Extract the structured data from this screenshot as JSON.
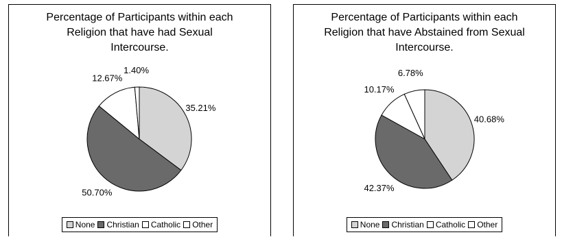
{
  "chart_data": [
    {
      "type": "pie",
      "title": "Percentage of Participants within each Religion that have had Sexual Intercourse.",
      "categories": [
        "None",
        "Christian",
        "Catholic",
        "Other"
      ],
      "values": [
        35.21,
        50.7,
        12.67,
        1.4
      ],
      "data_labels": [
        "35.21%",
        "50.70%",
        "12.67%",
        "1.40%"
      ],
      "colors": [
        "#d4d4d4",
        "#6a6a6a",
        "#ffffff",
        "#ffffff"
      ],
      "legend": "bottom"
    },
    {
      "type": "pie",
      "title": "Percentage of Participants within each Religion that have Abstained from Sexual Intercourse.",
      "categories": [
        "None",
        "Christian",
        "Catholic",
        "Other"
      ],
      "values": [
        40.68,
        42.37,
        10.17,
        6.78
      ],
      "data_labels": [
        "40.68%",
        "42.37%",
        "10.17%",
        "6.78%"
      ],
      "colors": [
        "#d4d4d4",
        "#6a6a6a",
        "#ffffff",
        "#ffffff"
      ],
      "legend": "bottom"
    }
  ]
}
